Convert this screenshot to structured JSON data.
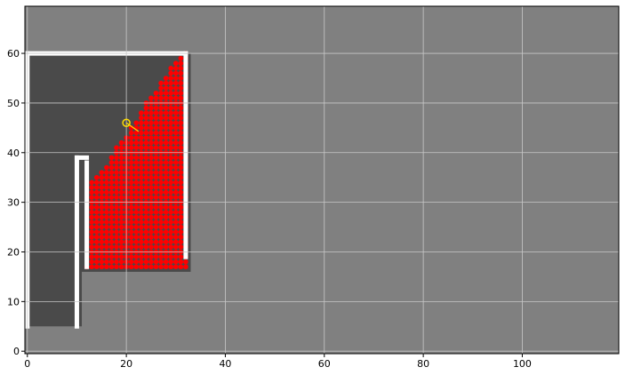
{
  "chart_data": {
    "type": "heatmap",
    "title": "",
    "xlabel": "",
    "ylabel": "",
    "xlim": [
      -0.5,
      119.5
    ],
    "ylim": [
      -0.5,
      69.5
    ],
    "xticks": [
      0,
      20,
      40,
      60,
      80,
      100
    ],
    "yticks": [
      0,
      10,
      20,
      30,
      40,
      50,
      60
    ],
    "grid": true,
    "colors": {
      "unknown": "#808080",
      "free": "#4a4a4a",
      "wall": "#ffffff",
      "frontier_point": "#ff0000",
      "robot": "#ffdd00",
      "grid": "#c8c8c8"
    },
    "free_region": {
      "outer": [
        [
          0,
          5
        ],
        [
          11,
          5
        ],
        [
          11,
          16
        ],
        [
          33,
          16
        ],
        [
          33,
          60
        ],
        [
          0,
          60
        ]
      ]
    },
    "walls": [
      [
        [
          0,
          60
        ],
        [
          32,
          60
        ]
      ],
      [
        [
          0,
          5
        ],
        [
          0,
          60
        ]
      ],
      [
        [
          10,
          5
        ],
        [
          10,
          39
        ]
      ],
      [
        [
          10,
          39
        ],
        [
          12,
          39
        ]
      ],
      [
        [
          12,
          17
        ],
        [
          12,
          38
        ]
      ],
      [
        [
          32,
          19
        ],
        [
          32,
          60
        ]
      ]
    ],
    "frontier_region": {
      "polygon": [
        [
          12,
          17
        ],
        [
          32,
          17
        ],
        [
          32,
          60
        ],
        [
          29,
          57
        ],
        [
          24,
          50
        ],
        [
          21,
          45
        ],
        [
          18,
          41
        ],
        [
          15,
          36
        ],
        [
          13,
          34
        ]
      ]
    },
    "robot": {
      "x": 20,
      "y": 46,
      "heading_deg": -35
    }
  }
}
